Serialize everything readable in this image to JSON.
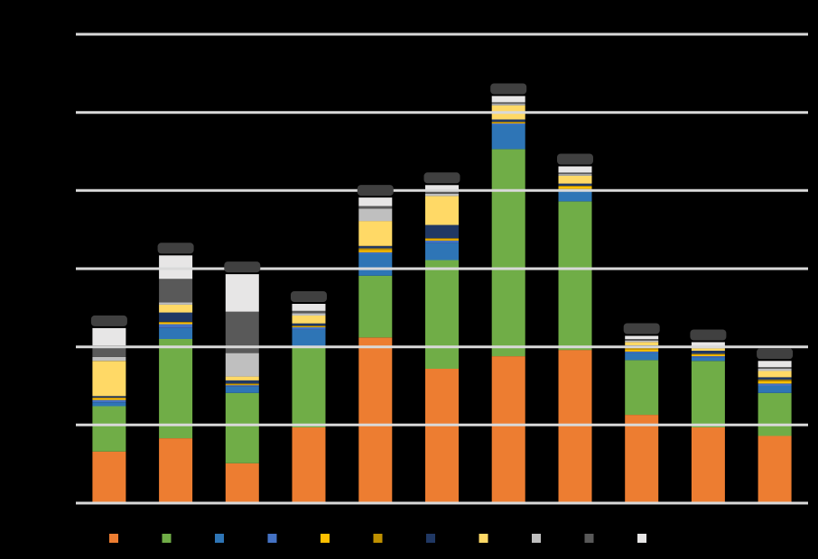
{
  "chart_data": {
    "type": "bar",
    "stacked": true,
    "title": "",
    "xlabel": "",
    "ylabel": "",
    "ylim": [
      0,
      6
    ],
    "gridlines": [
      0,
      1,
      2,
      3,
      4,
      5,
      6
    ],
    "grid": true,
    "legend_position": "bottom",
    "categories": [
      "",
      "",
      "",
      "",
      "",
      "",
      "",
      "",
      "",
      "",
      ""
    ],
    "series": [
      {
        "color": "#ED7D31",
        "values": [
          0.66,
          0.83,
          0.51,
          0.97,
          2.12,
          1.72,
          1.88,
          1.96,
          1.13,
          0.97,
          0.86
        ]
      },
      {
        "color": "#70AD47",
        "values": [
          0.58,
          1.27,
          0.9,
          1.03,
          0.79,
          1.39,
          2.65,
          1.9,
          0.7,
          0.85,
          0.55
        ]
      },
      {
        "color": "#2E75B6",
        "values": [
          0.05,
          0.14,
          0.08,
          0.22,
          0.28,
          0.22,
          0.31,
          0.14,
          0.09,
          0.04,
          0.09
        ]
      },
      {
        "color": "#4472C4",
        "values": [
          0.03,
          0.05,
          0.02,
          0.03,
          0.02,
          0.03,
          0.02,
          0.02,
          0.02,
          0.02,
          0.03
        ]
      },
      {
        "color": "#FFC000",
        "values": [
          0.02,
          0.02,
          0.01,
          0.01,
          0.03,
          0.02,
          0.01,
          0.03,
          0.03,
          0.02,
          0.03
        ]
      },
      {
        "color": "#BF9000",
        "values": [
          0.01,
          0.01,
          0.01,
          0.01,
          0.02,
          0.01,
          0.01,
          0.01,
          0.02,
          0.01,
          0.02
        ]
      },
      {
        "color": "#203864",
        "values": [
          0.02,
          0.12,
          0.04,
          0.03,
          0.03,
          0.17,
          0.03,
          0.03,
          0.03,
          0.04,
          0.03
        ]
      },
      {
        "color": "#FFD966",
        "values": [
          0.45,
          0.1,
          0.05,
          0.1,
          0.32,
          0.37,
          0.18,
          0.1,
          0.04,
          0.03,
          0.08
        ]
      },
      {
        "color": "#BFBFBF",
        "values": [
          0.05,
          0.03,
          0.3,
          0.03,
          0.16,
          0.03,
          0.02,
          0.02,
          0.02,
          0.02,
          0.03
        ]
      },
      {
        "color": "#595959",
        "values": [
          0.15,
          0.3,
          0.53,
          0.03,
          0.03,
          0.03,
          0.02,
          0.02,
          0.02,
          0.01,
          0.02
        ]
      },
      {
        "color": "#E7E6E6",
        "values": [
          0.22,
          0.3,
          0.48,
          0.09,
          0.11,
          0.08,
          0.08,
          0.08,
          0.04,
          0.05,
          0.08
        ]
      }
    ],
    "bar_gap_color": "#000000"
  }
}
